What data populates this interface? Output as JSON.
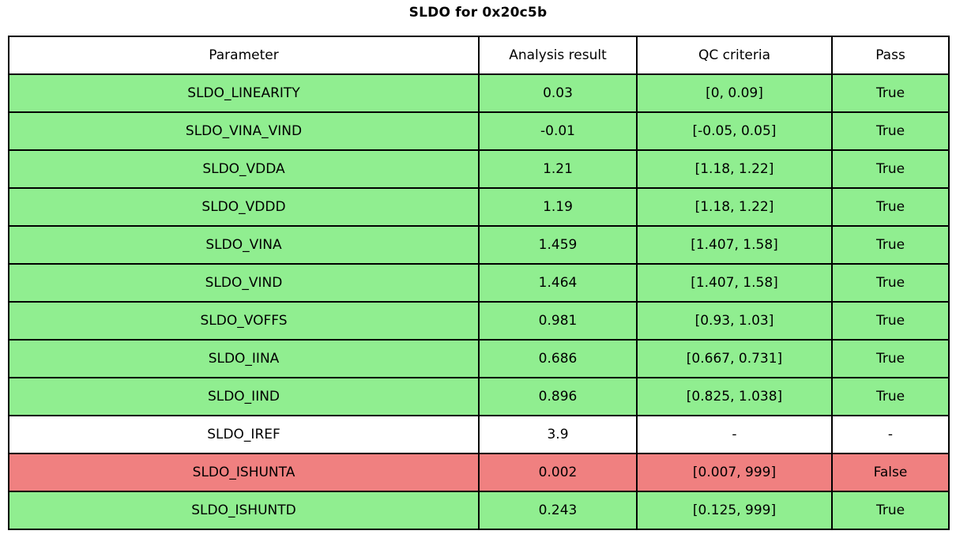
{
  "title": "SLDO for 0x20c5b",
  "colors": {
    "pass_green": "#90EE90",
    "fail_red": "#F08080",
    "neutral_white": "#FFFFFF",
    "border": "#000000"
  },
  "chart_data": {
    "type": "table",
    "title": "SLDO for 0x20c5b",
    "columns": [
      "Parameter",
      "Analysis result",
      "QC criteria",
      "Pass"
    ],
    "rows": [
      {
        "parameter": "SLDO_LINEARITY",
        "analysis_result": "0.03",
        "qc_criteria": "[0, 0.09]",
        "pass": "True",
        "status": "pass"
      },
      {
        "parameter": "SLDO_VINA_VIND",
        "analysis_result": "-0.01",
        "qc_criteria": "[-0.05, 0.05]",
        "pass": "True",
        "status": "pass"
      },
      {
        "parameter": "SLDO_VDDA",
        "analysis_result": "1.21",
        "qc_criteria": "[1.18, 1.22]",
        "pass": "True",
        "status": "pass"
      },
      {
        "parameter": "SLDO_VDDD",
        "analysis_result": "1.19",
        "qc_criteria": "[1.18, 1.22]",
        "pass": "True",
        "status": "pass"
      },
      {
        "parameter": "SLDO_VINA",
        "analysis_result": "1.459",
        "qc_criteria": "[1.407, 1.58]",
        "pass": "True",
        "status": "pass"
      },
      {
        "parameter": "SLDO_VIND",
        "analysis_result": "1.464",
        "qc_criteria": "[1.407, 1.58]",
        "pass": "True",
        "status": "pass"
      },
      {
        "parameter": "SLDO_VOFFS",
        "analysis_result": "0.981",
        "qc_criteria": "[0.93, 1.03]",
        "pass": "True",
        "status": "pass"
      },
      {
        "parameter": "SLDO_IINA",
        "analysis_result": "0.686",
        "qc_criteria": "[0.667, 0.731]",
        "pass": "True",
        "status": "pass"
      },
      {
        "parameter": "SLDO_IIND",
        "analysis_result": "0.896",
        "qc_criteria": "[0.825, 1.038]",
        "pass": "True",
        "status": "pass"
      },
      {
        "parameter": "SLDO_IREF",
        "analysis_result": "3.9",
        "qc_criteria": "-",
        "pass": "-",
        "status": "neutral"
      },
      {
        "parameter": "SLDO_ISHUNTA",
        "analysis_result": "0.002",
        "qc_criteria": "[0.007, 999]",
        "pass": "False",
        "status": "fail"
      },
      {
        "parameter": "SLDO_ISHUNTD",
        "analysis_result": "0.243",
        "qc_criteria": "[0.125, 999]",
        "pass": "True",
        "status": "pass"
      }
    ]
  }
}
